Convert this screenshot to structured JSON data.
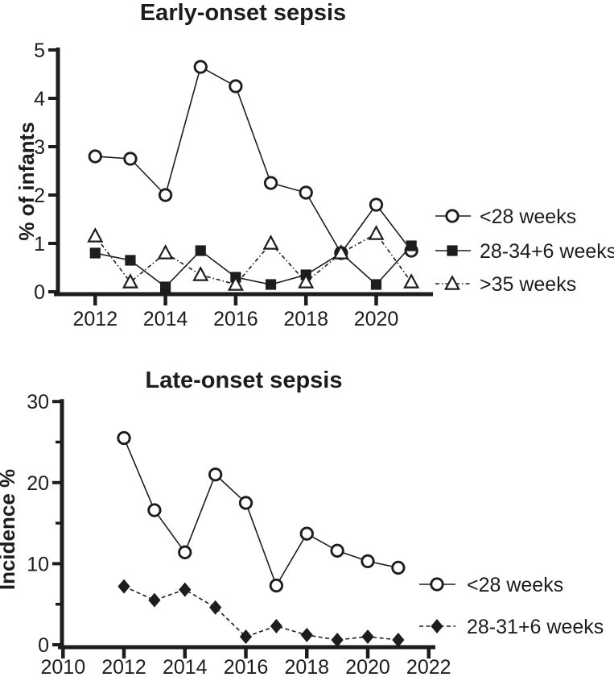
{
  "figure": {
    "background": "#ffffff"
  },
  "colors": {
    "ink": "#1d1d1d",
    "marker_fill_open": "#ffffff"
  },
  "chart_data": [
    {
      "type": "line",
      "title": "Early-onset sepsis",
      "xlabel": "",
      "ylabel": "% of infants",
      "x": [
        2012,
        2013,
        2014,
        2015,
        2016,
        2017,
        2018,
        2019,
        2020,
        2021
      ],
      "xlim": [
        2011.5,
        2021.6
      ],
      "ylim": [
        0,
        5
      ],
      "yticks": [
        0,
        1,
        2,
        3,
        4,
        5
      ],
      "yticks_minor": [],
      "xticks": [
        2012,
        2014,
        2016,
        2018,
        2020
      ],
      "grid": false,
      "legend_position": "right",
      "series": [
        {
          "name": "<28 weeks",
          "marker": "open-circle",
          "line_style": "solid",
          "values": [
            2.8,
            2.75,
            2.0,
            4.65,
            4.25,
            2.25,
            2.05,
            0.8,
            1.8,
            0.85
          ]
        },
        {
          "name": "28-34+6 weeks",
          "marker": "filled-square",
          "line_style": "solid",
          "values": [
            0.8,
            0.65,
            0.1,
            0.85,
            0.3,
            0.15,
            0.35,
            0.8,
            0.15,
            0.95
          ]
        },
        {
          "name": ">35 weeks",
          "marker": "open-triangle",
          "line_style": "dash-dot",
          "values": [
            1.15,
            0.2,
            0.8,
            0.35,
            0.15,
            1.0,
            0.2,
            0.8,
            1.2,
            0.2
          ]
        }
      ]
    },
    {
      "type": "line",
      "title": "Late-onset sepsis",
      "xlabel": "",
      "ylabel": "Incidence %",
      "x": [
        2012,
        2013,
        2014,
        2015,
        2016,
        2017,
        2018,
        2019,
        2020,
        2021
      ],
      "xlim": [
        2010,
        2022
      ],
      "ylim": [
        0,
        30
      ],
      "yticks": [
        0,
        10,
        20,
        30
      ],
      "yticks_minor": [
        5,
        15,
        25
      ],
      "xticks": [
        2010,
        2012,
        2014,
        2016,
        2018,
        2020,
        2022
      ],
      "grid": false,
      "legend_position": "right",
      "series": [
        {
          "name": "<28 weeks",
          "marker": "open-circle",
          "line_style": "solid",
          "values": [
            25.5,
            16.6,
            11.4,
            21.0,
            17.5,
            7.3,
            13.7,
            11.6,
            10.3,
            9.5
          ]
        },
        {
          "name": "28-31+6 weeks",
          "marker": "filled-diamond",
          "line_style": "dashed",
          "values": [
            7.2,
            5.5,
            6.8,
            4.6,
            1.0,
            2.3,
            1.2,
            0.6,
            1.0,
            0.6
          ]
        }
      ]
    }
  ]
}
